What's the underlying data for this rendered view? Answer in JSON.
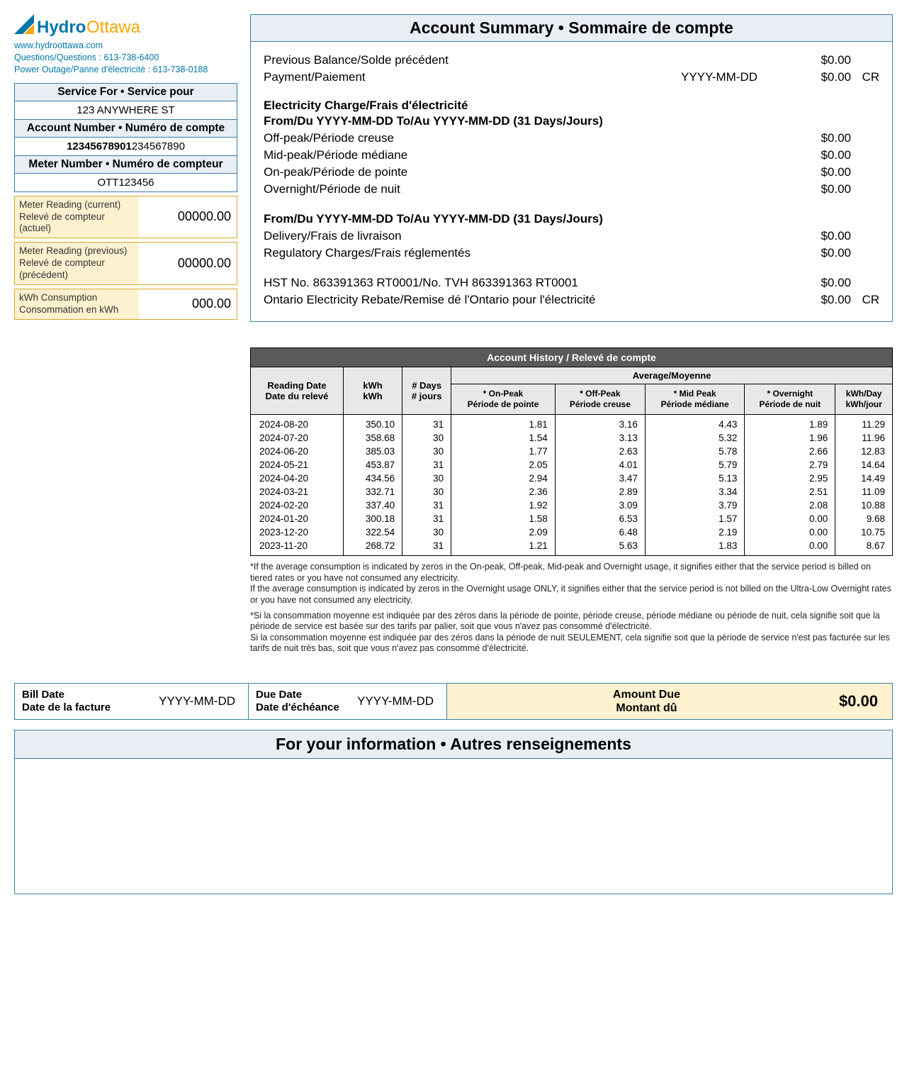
{
  "logo": {
    "brand_left": "Hydro",
    "brand_right": "Ottawa",
    "website": "www.hydroottawa.com",
    "questions": "Questions/Questions : 613-738-6400",
    "outage": "Power Outage/Panne d'électricité : 613-738-0188"
  },
  "service": {
    "hdr": "Service For • Service pour",
    "val": "123 ANYWHERE ST",
    "acct_hdr": "Account Number • Numéro de compte",
    "acct_bold": "12345678901",
    "acct_rest": "234567890",
    "meter_hdr": "Meter Number • Numéro de compteur",
    "meter_val": "OTT123456"
  },
  "readings": {
    "cur_lbl": "Meter Reading (current)\nRelevé de compteur (actuel)",
    "cur_val": "00000.00",
    "prev_lbl": "Meter Reading (previous)\nRelevé de compteur (précédent)",
    "prev_val": "00000.00",
    "cons_lbl": "kWh Consumption\nConsommation en kWh",
    "cons_val": "000.00"
  },
  "summary": {
    "title": "Account Summary • Sommaire de compte",
    "prev_balance_lbl": "Previous Balance/Solde précédent",
    "prev_balance_amt": "$0.00",
    "payment_lbl": "Payment/Paiement",
    "payment_date": "YYYY-MM-DD",
    "payment_amt": "$0.00",
    "payment_cr": "CR",
    "elec_hdr": "Electricity Charge/Frais d'électricité",
    "period1": "From/Du YYYY-MM-DD To/Au YYYY-MM-DD (31 Days/Jours)",
    "offpeak_lbl": "Off-peak/Période creuse",
    "offpeak_amt": "$0.00",
    "midpeak_lbl": "Mid-peak/Période médiane",
    "midpeak_amt": "$0.00",
    "onpeak_lbl": "On-peak/Période de pointe",
    "onpeak_amt": "$0.00",
    "overnight_lbl": "Overnight/Période de nuit",
    "overnight_amt": "$0.00",
    "period2": "From/Du YYYY-MM-DD To/Au YYYY-MM-DD (31 Days/Jours)",
    "delivery_lbl": "Delivery/Frais de livraison",
    "delivery_amt": "$0.00",
    "reg_lbl": "Regulatory Charges/Frais réglementés",
    "reg_amt": "$0.00",
    "hst_lbl": "HST No. 863391363 RT0001/No. TVH 863391363 RT0001",
    "hst_amt": "$0.00",
    "rebate_lbl": "Ontario Electricity Rebate/Remise dé l'Ontario pour l'électricité",
    "rebate_amt": "$0.00",
    "rebate_cr": "CR"
  },
  "history": {
    "title": "Account History / Relevé de compte",
    "avg_hdr": "Average/Moyenne",
    "cols": {
      "date": "Reading Date\nDate du relevé",
      "kwh": "kWh\nkWh",
      "days": "# Days\n# jours",
      "onpeak": "* On-Peak\nPériode de pointe",
      "offpeak": "* Off-Peak\nPériode creuse",
      "midpeak": "* Mid Peak\nPériode médiane",
      "overnight": "* Overnight\nPériode de nuit",
      "perday": "kWh/Day\nkWh/jour"
    },
    "rows": [
      [
        "2024-08-20",
        "350.10",
        "31",
        "1.81",
        "3.16",
        "4.43",
        "1.89",
        "11.29"
      ],
      [
        "2024-07-20",
        "358.68",
        "30",
        "1.54",
        "3.13",
        "5.32",
        "1.96",
        "11.96"
      ],
      [
        "2024-06-20",
        "385.03",
        "30",
        "1.77",
        "2.63",
        "5.78",
        "2.66",
        "12.83"
      ],
      [
        "2024-05-21",
        "453.87",
        "31",
        "2.05",
        "4.01",
        "5.79",
        "2.79",
        "14.64"
      ],
      [
        "2024-04-20",
        "434.56",
        "30",
        "2.94",
        "3.47",
        "5.13",
        "2.95",
        "14.49"
      ],
      [
        "2024-03-21",
        "332.71",
        "30",
        "2.36",
        "2.89",
        "3.34",
        "2.51",
        "11.09"
      ],
      [
        "2024-02-20",
        "337.40",
        "31",
        "1.92",
        "3.09",
        "3.79",
        "2.08",
        "10.88"
      ],
      [
        "2024-01-20",
        "300.18",
        "31",
        "1.58",
        "6.53",
        "1.57",
        "0.00",
        "9.68"
      ],
      [
        "2023-12-20",
        "322.54",
        "30",
        "2.09",
        "6.48",
        "2.19",
        "0.00",
        "10.75"
      ],
      [
        "2023-11-20",
        "268.72",
        "31",
        "1.21",
        "5.63",
        "1.83",
        "0.00",
        "8.67"
      ]
    ]
  },
  "footnote": {
    "en1": "*If the average consumption is indicated by zeros in the On-peak, Off-peak, Mid-peak and Overnight usage, it signifies either that the service period is billed on tiered rates or you have not consumed any electricity.",
    "en2": "If the average consumption is indicated by zeros in the Overnight usage ONLY, it signifies either that the service period is not billed on the Ultra-Low Overnight rates or you have not consumed any electricity.",
    "fr1": "*Si la consommation moyenne est indiquée par des zéros dans la période de pointe, période creuse, période médiane ou période de nuit, cela signifie soit que la période de service est basée sur des tarifs par palier, soit que vous n'avez pas consommé d'électricité.",
    "fr2": "Si la consommation moyenne est indiquée par des zéros dans la période de nuit SEULEMENT, cela signifie soit que la période de service n'est pas facturée sur les tarifs de nuit très bas, soit que vous n'avez pas consommé d'électricité."
  },
  "billbar": {
    "bill_date_lbl": "Bill Date\nDate de la facture",
    "bill_date_val": "YYYY-MM-DD",
    "due_date_lbl": "Due Date\nDate d'échéance",
    "due_date_val": "YYYY-MM-DD",
    "amount_lbl": "Amount Due\nMontant dû",
    "amount_val": "$0.00"
  },
  "fyi": {
    "title": "For your information • Autres renseignements"
  }
}
